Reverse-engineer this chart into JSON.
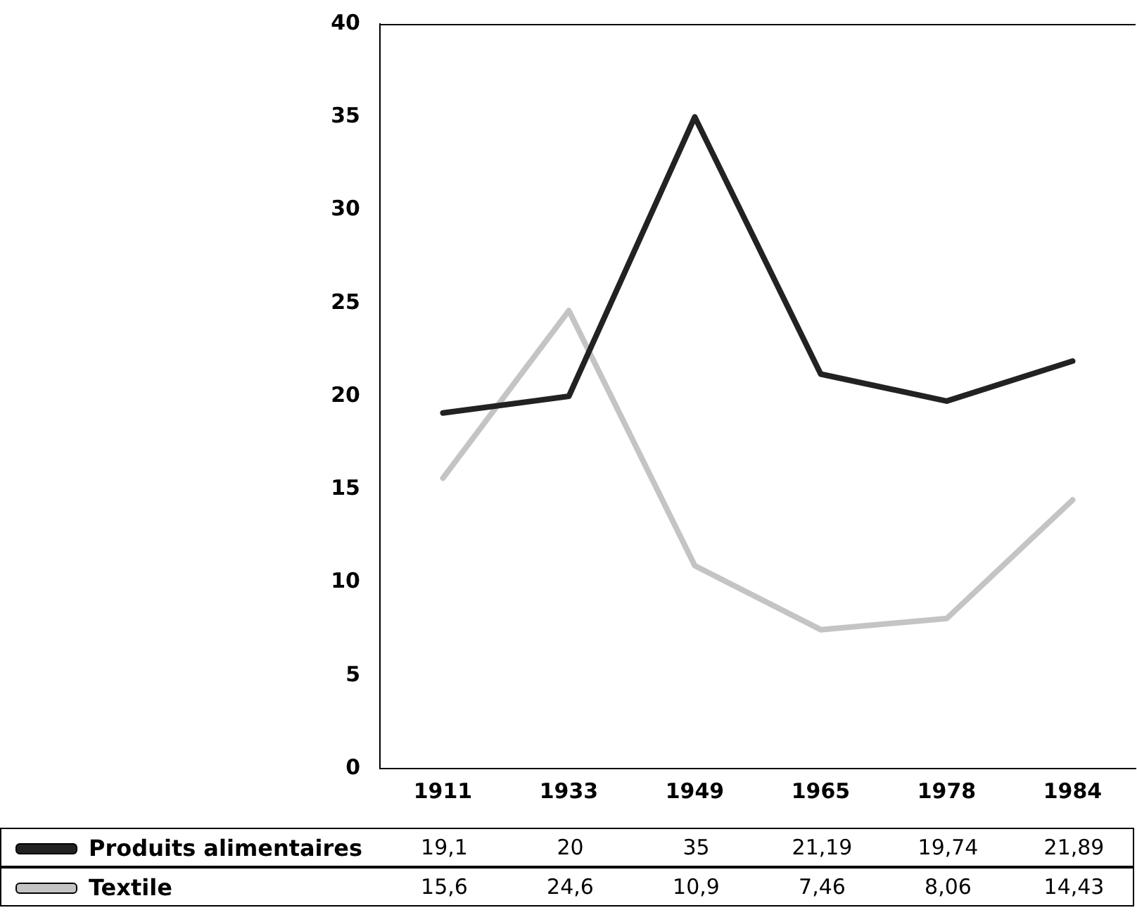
{
  "chart_data": {
    "type": "line",
    "categories": [
      "1911",
      "1933",
      "1949",
      "1965",
      "1978",
      "1984"
    ],
    "series": [
      {
        "name": "Produits alimentaires",
        "color": "#222222",
        "values": [
          19.1,
          20,
          35,
          21.19,
          19.74,
          21.89
        ],
        "value_labels": [
          "19,1",
          "20",
          "35",
          "21,19",
          "19,74",
          "21,89"
        ]
      },
      {
        "name": "Textile",
        "color": "#c4c4c4",
        "values": [
          15.6,
          24.6,
          10.9,
          7.46,
          8.06,
          14.43
        ],
        "value_labels": [
          "15,6",
          "24,6",
          "10,9",
          "7,46",
          "8,06",
          "14,43"
        ]
      }
    ],
    "ylim": [
      0,
      40
    ],
    "yticks": [
      0,
      5,
      10,
      15,
      20,
      25,
      30,
      35,
      40
    ],
    "grid": false,
    "legend": "bottom",
    "marker": "none",
    "line_style": "solid"
  }
}
